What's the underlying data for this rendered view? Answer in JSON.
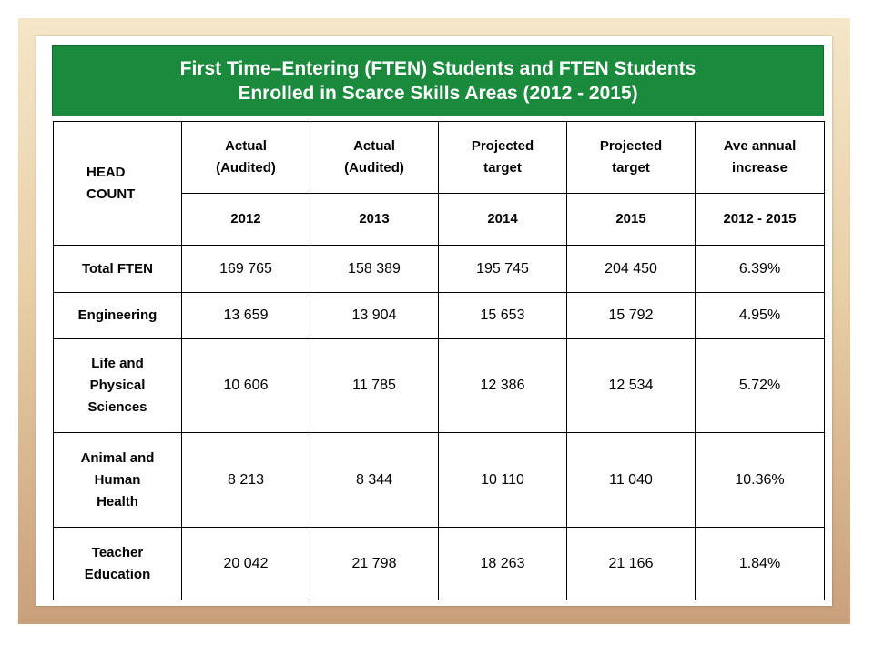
{
  "title": {
    "line1": "First Time–Entering (FTEN) Students and FTEN Students",
    "line2": "Enrolled in Scarce Skills Areas (2012 - 2015)"
  },
  "table": {
    "corner_label_1": "HEAD",
    "corner_label_2": "COUNT",
    "headers": [
      {
        "line1": "Actual",
        "line2": "(Audited)"
      },
      {
        "line1": "Actual",
        "line2": "(Audited)"
      },
      {
        "line1": "Projected",
        "line2": "target"
      },
      {
        "line1": "Projected",
        "line2": "target"
      },
      {
        "line1": "Ave annual",
        "line2": "increase"
      }
    ],
    "periods": [
      "2012",
      "2013",
      "2014",
      "2015",
      "2012 - 2015"
    ],
    "rows": [
      {
        "label": [
          "Total FTEN"
        ],
        "values": [
          "169 765",
          "158 389",
          "195 745",
          "204 450",
          "6.39%"
        ]
      },
      {
        "label": [
          "Engineering"
        ],
        "values": [
          "13 659",
          "13 904",
          "15 653",
          "15 792",
          "4.95%"
        ]
      },
      {
        "label": [
          "Life and",
          "Physical",
          "Sciences"
        ],
        "values": [
          "10 606",
          "11 785",
          "12 386",
          "12 534",
          "5.72%"
        ]
      },
      {
        "label": [
          "Animal and",
          "Human",
          "Health"
        ],
        "values": [
          "8 213",
          "8 344",
          "10 110",
          "11 040",
          "10.36%"
        ]
      },
      {
        "label": [
          "Teacher",
          "Education"
        ],
        "values": [
          "20 042",
          "21 798",
          "18 263",
          "21 166",
          "1.84%"
        ]
      }
    ]
  },
  "colors": {
    "banner": "#1a8a3d",
    "frame_top": "#f5e6c8",
    "frame_bottom": "#c9a07c"
  }
}
